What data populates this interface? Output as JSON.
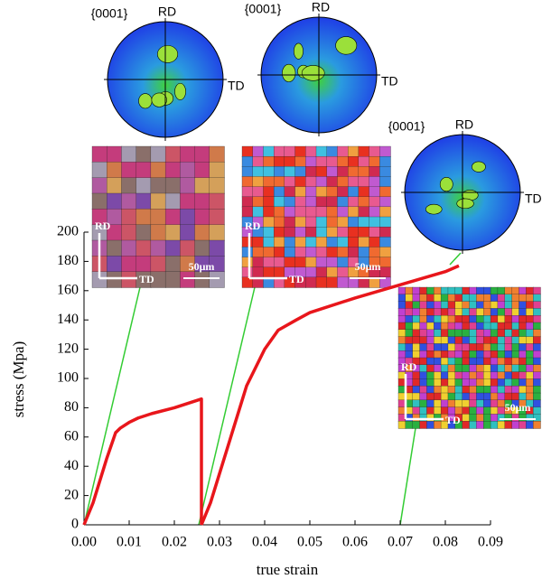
{
  "chart_data": {
    "type": "line",
    "xlabel": "true strain",
    "ylabel": "stress (Mpa)",
    "xlim": [
      0,
      0.09
    ],
    "ylim": [
      0,
      200
    ],
    "xticks": [
      {
        "value": 0,
        "label": "0.00"
      },
      {
        "value": 0.01,
        "label": "0.01"
      },
      {
        "value": 0.02,
        "label": "0.02"
      },
      {
        "value": 0.03,
        "label": "0.03"
      },
      {
        "value": 0.04,
        "label": "0.04"
      },
      {
        "value": 0.05,
        "label": "0.05"
      },
      {
        "value": 0.06,
        "label": "0.06"
      },
      {
        "value": 0.07,
        "label": "0.07"
      },
      {
        "value": 0.08,
        "label": "0.08"
      },
      {
        "value": 0.09,
        "label": "0.09"
      }
    ],
    "yticks": [
      0,
      20,
      40,
      60,
      80,
      100,
      120,
      140,
      160,
      180,
      200
    ],
    "series": [
      {
        "color": "#e8161b",
        "x": [
          0,
          0.002,
          0.005,
          0.007,
          0.008,
          0.01,
          0.012,
          0.015,
          0.02,
          0.025,
          0.026,
          0.026
        ],
        "values": [
          0,
          15,
          45,
          63,
          66,
          70,
          73,
          76,
          80,
          85,
          86,
          0
        ]
      },
      {
        "color": "#e8161b",
        "x": [
          0.026,
          0.028,
          0.03,
          0.033,
          0.036,
          0.04,
          0.043,
          0.047,
          0.05,
          0.06,
          0.07,
          0.08,
          0.083
        ],
        "values": [
          0,
          15,
          35,
          65,
          95,
          120,
          133,
          140,
          145,
          155,
          164,
          173,
          177
        ]
      }
    ],
    "pole_figures": [
      {
        "label": "{0001}",
        "rd": "RD",
        "td": "TD"
      },
      {
        "label": "{0001}",
        "rd": "RD",
        "td": "TD"
      },
      {
        "label": "{0001}",
        "rd": "RD",
        "td": "TD"
      }
    ],
    "maps": [
      {
        "rd": "RD",
        "td": "TD",
        "scale": "50μm"
      },
      {
        "rd": "RD",
        "td": "TD",
        "scale": "50μm"
      },
      {
        "rd": "RD",
        "td": "TD",
        "scale": "50μm"
      }
    ]
  }
}
